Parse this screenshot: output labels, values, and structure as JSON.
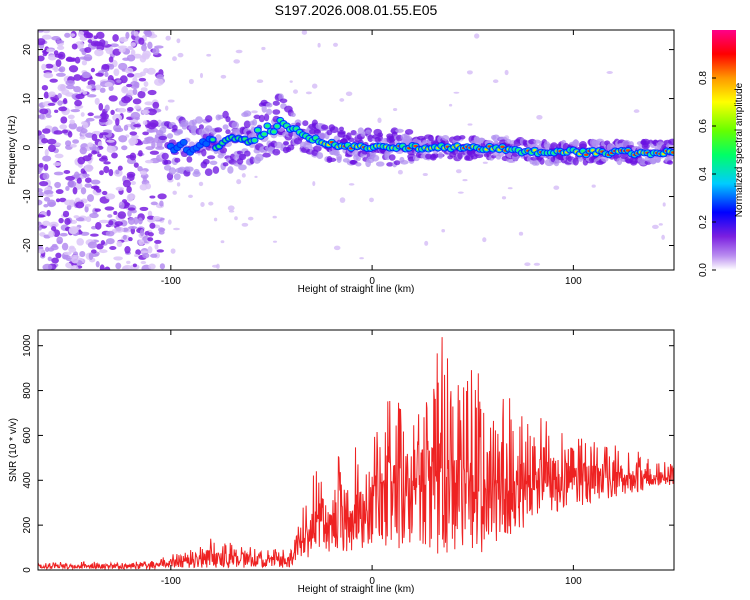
{
  "title": "S197.2026.008.01.55.E05",
  "chart_data": [
    {
      "type": "heatmap",
      "xlabel": "Height of straight line (km)",
      "ylabel": "Frequency (Hz)",
      "xlim": [
        -166,
        150
      ],
      "ylim": [
        -25,
        24
      ],
      "xticks": [
        -100,
        0,
        100
      ],
      "yticks": [
        -20,
        -10,
        0,
        10,
        20
      ],
      "ridge": {
        "x": [
          -100,
          -90,
          -80,
          -70,
          -60,
          -50,
          -43,
          -35,
          -25,
          -10,
          0,
          20,
          40,
          60,
          80,
          100,
          120,
          150
        ],
        "y": [
          0,
          0,
          1,
          1,
          2,
          4,
          5,
          3,
          1,
          0,
          0,
          0,
          0,
          0,
          -1,
          -1,
          -1,
          -1
        ]
      },
      "colorbar": {
        "label": "Normalized spectral amplitude",
        "range": [
          0,
          1
        ],
        "ticks": [
          "0.0",
          "0.2",
          "0.4",
          "0.6",
          "0.8"
        ],
        "colormap": [
          "#ffffff",
          "#8a2be2",
          "#0000ff",
          "#00ffff",
          "#00ff00",
          "#ffff00",
          "#ff0000",
          "#ff00ff"
        ]
      }
    },
    {
      "type": "line",
      "xlabel": "Height of straight line (km)",
      "ylabel": "SNR (10 * v/v)",
      "xlim": [
        -166,
        150
      ],
      "ylim": [
        0,
        1070
      ],
      "xticks": [
        -100,
        0,
        100
      ],
      "yticks": [
        0,
        200,
        400,
        600,
        800,
        1000
      ],
      "color": "#ee2222",
      "envelope": {
        "x": [
          -166,
          -110,
          -100,
          -90,
          -80,
          -60,
          -40,
          -38,
          -30,
          -10,
          0,
          10,
          20,
          30,
          35,
          40,
          50,
          60,
          70,
          80,
          100,
          120,
          140,
          150
        ],
        "low": [
          5,
          5,
          10,
          10,
          10,
          10,
          10,
          30,
          60,
          80,
          100,
          100,
          60,
          60,
          50,
          50,
          60,
          100,
          150,
          200,
          280,
          320,
          360,
          380
        ],
        "high": [
          35,
          40,
          70,
          100,
          150,
          110,
          90,
          150,
          450,
          550,
          600,
          800,
          820,
          900,
          1060,
          850,
          950,
          850,
          820,
          700,
          600,
          560,
          520,
          500
        ]
      }
    }
  ]
}
